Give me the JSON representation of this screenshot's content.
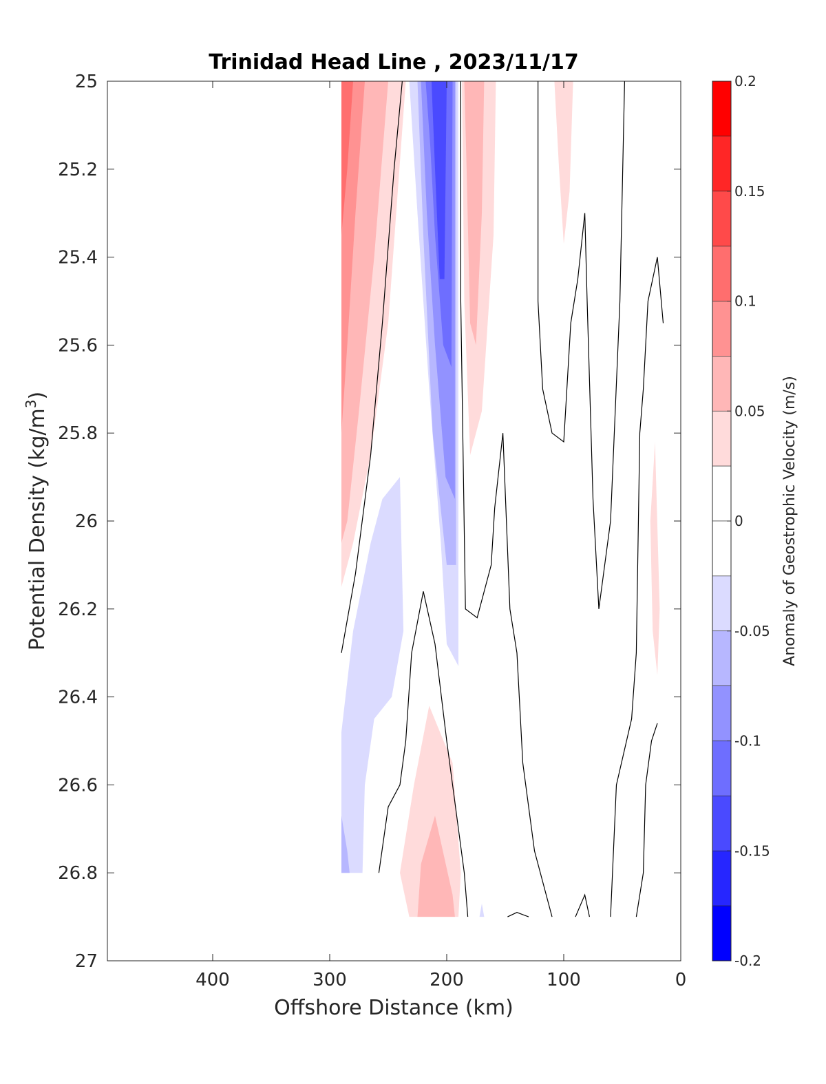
{
  "chart_data": {
    "type": "contour",
    "title": "Trinidad Head Line , 2023/11/17",
    "xlabel": "Offshore Distance (km)",
    "ylabel_main": "Potential Density (kg/m",
    "ylabel_sup": "3",
    "ylabel_end": ")",
    "xlim": [
      490,
      0
    ],
    "ylim": [
      25,
      27
    ],
    "x_reversed": true,
    "y_reversed": true,
    "x_ticks": [
      400,
      300,
      200,
      100,
      0
    ],
    "x_tick_labels": [
      "400",
      "300",
      "200",
      "100",
      "0"
    ],
    "y_ticks": [
      25,
      25.2,
      25.4,
      25.6,
      25.8,
      26,
      26.2,
      26.4,
      26.6,
      26.8,
      27
    ],
    "y_tick_labels": [
      "25",
      "25.2",
      "25.4",
      "25.6",
      "25.8",
      "26",
      "26.2",
      "26.4",
      "26.6",
      "26.8",
      "27"
    ],
    "colorbar": {
      "label": "Anomaly of Geostrophic Velocity (m/s)",
      "range": [
        -0.2,
        0.2
      ],
      "ticks": [
        0.2,
        0.15,
        0.1,
        0.05,
        0,
        -0.05,
        -0.1,
        -0.15,
        -0.2
      ],
      "tick_labels": [
        "0.2",
        "0.15",
        "0.1",
        "0.05",
        "0",
        "-0.05",
        "-0.1",
        "-0.15",
        "-0.2"
      ],
      "levels": [
        {
          "lo": 0.175,
          "hi": 0.2,
          "color": "#ff0000"
        },
        {
          "lo": 0.15,
          "hi": 0.175,
          "color": "#ff2626"
        },
        {
          "lo": 0.125,
          "hi": 0.15,
          "color": "#ff4a4a"
        },
        {
          "lo": 0.1,
          "hi": 0.125,
          "color": "#ff6e6e"
        },
        {
          "lo": 0.075,
          "hi": 0.1,
          "color": "#ff9292"
        },
        {
          "lo": 0.05,
          "hi": 0.075,
          "color": "#ffb7b7"
        },
        {
          "lo": 0.025,
          "hi": 0.05,
          "color": "#ffdbdb"
        },
        {
          "lo": 0,
          "hi": 0.025,
          "color": "#ffffff"
        },
        {
          "lo": -0.025,
          "hi": 0,
          "color": "#ffffff"
        },
        {
          "lo": -0.05,
          "hi": -0.025,
          "color": "#dbdbff"
        },
        {
          "lo": -0.075,
          "hi": -0.05,
          "color": "#b7b7ff"
        },
        {
          "lo": -0.1,
          "hi": -0.075,
          "color": "#9292ff"
        },
        {
          "lo": -0.125,
          "hi": -0.1,
          "color": "#6e6eff"
        },
        {
          "lo": -0.15,
          "hi": -0.125,
          "color": "#4a4aff"
        },
        {
          "lo": -0.175,
          "hi": -0.15,
          "color": "#2626ff"
        },
        {
          "lo": -0.2,
          "hi": -0.175,
          "color": "#0000ff"
        }
      ]
    },
    "filled_regions": [
      {
        "name": "pos-outer-west",
        "value": 0.03,
        "color": "#ffdbdb",
        "points": [
          [
            290,
            25
          ],
          [
            235,
            25
          ],
          [
            250,
            25.55
          ],
          [
            265,
            25.85
          ],
          [
            280,
            26.05
          ],
          [
            290,
            26.15
          ]
        ]
      },
      {
        "name": "pos-mid-west",
        "value": 0.06,
        "color": "#ffb7b7",
        "points": [
          [
            290,
            25
          ],
          [
            250,
            25
          ],
          [
            262,
            25.4
          ],
          [
            275,
            25.75
          ],
          [
            285,
            26.0
          ],
          [
            290,
            26.05
          ]
        ]
      },
      {
        "name": "pos-inner-west",
        "value": 0.09,
        "color": "#ff9292",
        "points": [
          [
            290,
            25
          ],
          [
            270,
            25
          ],
          [
            278,
            25.3
          ],
          [
            285,
            25.6
          ],
          [
            290,
            25.8
          ]
        ]
      },
      {
        "name": "pos-core-west",
        "value": 0.11,
        "color": "#ff6e6e",
        "points": [
          [
            290,
            25
          ],
          [
            280,
            25
          ],
          [
            285,
            25.2
          ],
          [
            290,
            25.35
          ]
        ]
      },
      {
        "name": "neg-outer-central",
        "value": -0.03,
        "color": "#dbdbff",
        "points": [
          [
            232,
            25
          ],
          [
            190,
            25
          ],
          [
            190,
            26.33
          ],
          [
            200,
            26.28
          ],
          [
            205,
            26.05
          ],
          [
            215,
            25.7
          ],
          [
            225,
            25.3
          ]
        ]
      },
      {
        "name": "neg-mid-central",
        "value": -0.06,
        "color": "#b7b7ff",
        "points": [
          [
            225,
            25
          ],
          [
            192,
            25
          ],
          [
            192,
            26.1
          ],
          [
            200,
            26.1
          ],
          [
            212,
            25.8
          ],
          [
            220,
            25.35
          ]
        ]
      },
      {
        "name": "neg-inner-central",
        "value": -0.09,
        "color": "#9292ff",
        "points": [
          [
            222,
            25
          ],
          [
            193,
            25
          ],
          [
            193,
            25.95
          ],
          [
            201,
            25.9
          ],
          [
            210,
            25.6
          ],
          [
            217,
            25.3
          ]
        ]
      },
      {
        "name": "neg-core-central",
        "value": -0.12,
        "color": "#6e6eff",
        "points": [
          [
            218,
            25
          ],
          [
            195,
            25
          ],
          [
            196,
            25.65
          ],
          [
            203,
            25.6
          ],
          [
            210,
            25.35
          ],
          [
            214,
            25.15
          ]
        ]
      },
      {
        "name": "neg-peak-central",
        "value": -0.15,
        "color": "#4a4aff",
        "points": [
          [
            213,
            25
          ],
          [
            200,
            25
          ],
          [
            202,
            25.45
          ],
          [
            206,
            25.45
          ],
          [
            210,
            25.2
          ]
        ]
      },
      {
        "name": "pos-outer-east",
        "value": 0.03,
        "color": "#ffdbdb",
        "points": [
          [
            187,
            25
          ],
          [
            158,
            25
          ],
          [
            160,
            25.35
          ],
          [
            170,
            25.75
          ],
          [
            180,
            25.85
          ],
          [
            185,
            25.5
          ]
        ]
      },
      {
        "name": "pos-mid-east",
        "value": 0.06,
        "color": "#ffb7b7",
        "points": [
          [
            185,
            25
          ],
          [
            168,
            25
          ],
          [
            170,
            25.3
          ],
          [
            175,
            25.6
          ],
          [
            180,
            25.55
          ],
          [
            183,
            25.2
          ]
        ]
      },
      {
        "name": "neg-lower-west",
        "value": -0.03,
        "color": "#dbdbff",
        "points": [
          [
            240,
            25.9
          ],
          [
            237,
            26.25
          ],
          [
            247,
            26.4
          ],
          [
            262,
            26.45
          ],
          [
            270,
            26.6
          ],
          [
            272,
            26.8
          ],
          [
            290,
            26.8
          ],
          [
            290,
            26.48
          ],
          [
            280,
            26.25
          ],
          [
            265,
            26.05
          ],
          [
            255,
            25.95
          ]
        ]
      },
      {
        "name": "neg-lower-west-core",
        "value": -0.06,
        "color": "#b7b7ff",
        "points": [
          [
            290,
            26.67
          ],
          [
            285,
            26.75
          ],
          [
            283,
            26.8
          ],
          [
            290,
            26.8
          ]
        ]
      },
      {
        "name": "pos-lower-central-outer",
        "value": 0.03,
        "color": "#ffdbdb",
        "points": [
          [
            215,
            26.42
          ],
          [
            195,
            26.55
          ],
          [
            188,
            26.8
          ],
          [
            190,
            26.9
          ],
          [
            232,
            26.9
          ],
          [
            240,
            26.8
          ],
          [
            228,
            26.6
          ]
        ]
      },
      {
        "name": "pos-lower-central-inner",
        "value": 0.06,
        "color": "#ffb7b7",
        "points": [
          [
            210,
            26.67
          ],
          [
            195,
            26.85
          ],
          [
            193,
            26.9
          ],
          [
            225,
            26.9
          ],
          [
            222,
            26.78
          ]
        ]
      },
      {
        "name": "pos-top-east",
        "value": 0.03,
        "color": "#ffdbdb",
        "points": [
          [
            108,
            25
          ],
          [
            92,
            25
          ],
          [
            95,
            25.25
          ],
          [
            100,
            25.37
          ],
          [
            104,
            25.2
          ]
        ]
      },
      {
        "name": "pos-far-east",
        "value": 0.03,
        "color": "#ffdbdb",
        "points": [
          [
            22,
            25.82
          ],
          [
            18,
            26.2
          ],
          [
            20,
            26.35
          ],
          [
            24,
            26.25
          ],
          [
            26,
            26.0
          ]
        ]
      },
      {
        "name": "neg-bottom-speck",
        "value": -0.03,
        "color": "#dbdbff",
        "points": [
          [
            172,
            26.9
          ],
          [
            170,
            26.87
          ],
          [
            168,
            26.9
          ]
        ]
      }
    ],
    "contour_lines": [
      {
        "name": "zero-contour-1",
        "points": [
          [
            290,
            26.3
          ],
          [
            278,
            26.12
          ],
          [
            265,
            25.85
          ],
          [
            255,
            25.55
          ],
          [
            245,
            25.2
          ],
          [
            238,
            25
          ]
        ]
      },
      {
        "name": "zero-contour-2",
        "points": [
          [
            188,
            25
          ],
          [
            188,
            25.5
          ],
          [
            184,
            26.2
          ],
          [
            174,
            26.22
          ],
          [
            162,
            26.1
          ],
          [
            159,
            25.97
          ],
          [
            152,
            25.8
          ],
          [
            146,
            26.2
          ],
          [
            140,
            26.3
          ],
          [
            135,
            26.55
          ],
          [
            125,
            26.75
          ],
          [
            110,
            26.9
          ]
        ]
      },
      {
        "name": "zero-contour-3",
        "points": [
          [
            258,
            26.8
          ],
          [
            250,
            26.65
          ],
          [
            240,
            26.6
          ],
          [
            235,
            26.5
          ],
          [
            230,
            26.3
          ],
          [
            220,
            26.16
          ],
          [
            210,
            26.28
          ],
          [
            200,
            26.5
          ],
          [
            185,
            26.8
          ],
          [
            182,
            26.9
          ]
        ]
      },
      {
        "name": "zero-contour-4",
        "points": [
          [
            122,
            25
          ],
          [
            122,
            25.5
          ],
          [
            118,
            25.7
          ],
          [
            110,
            25.8
          ],
          [
            100,
            25.82
          ],
          [
            94,
            25.55
          ],
          [
            88,
            25.45
          ],
          [
            82,
            25.3
          ],
          [
            80,
            25.5
          ],
          [
            75,
            25.95
          ],
          [
            70,
            26.2
          ],
          [
            65,
            26.1
          ],
          [
            60,
            26.0
          ],
          [
            52,
            25.5
          ],
          [
            48,
            25
          ]
        ]
      },
      {
        "name": "zero-contour-5",
        "points": [
          [
            15,
            25.55
          ],
          [
            20,
            25.4
          ],
          [
            28,
            25.5
          ],
          [
            32,
            25.7
          ],
          [
            35,
            25.8
          ],
          [
            38,
            26.3
          ],
          [
            42,
            26.45
          ],
          [
            55,
            26.6
          ],
          [
            60,
            26.9
          ]
        ]
      },
      {
        "name": "zero-contour-6",
        "points": [
          [
            20,
            26.46
          ],
          [
            25,
            26.5
          ],
          [
            30,
            26.6
          ],
          [
            32,
            26.8
          ],
          [
            38,
            26.9
          ]
        ]
      },
      {
        "name": "zero-contour-7",
        "points": [
          [
            90,
            26.9
          ],
          [
            82,
            26.85
          ],
          [
            78,
            26.9
          ]
        ]
      },
      {
        "name": "zero-contour-8",
        "points": [
          [
            148,
            26.9
          ],
          [
            140,
            26.89
          ],
          [
            130,
            26.9
          ]
        ]
      }
    ]
  }
}
